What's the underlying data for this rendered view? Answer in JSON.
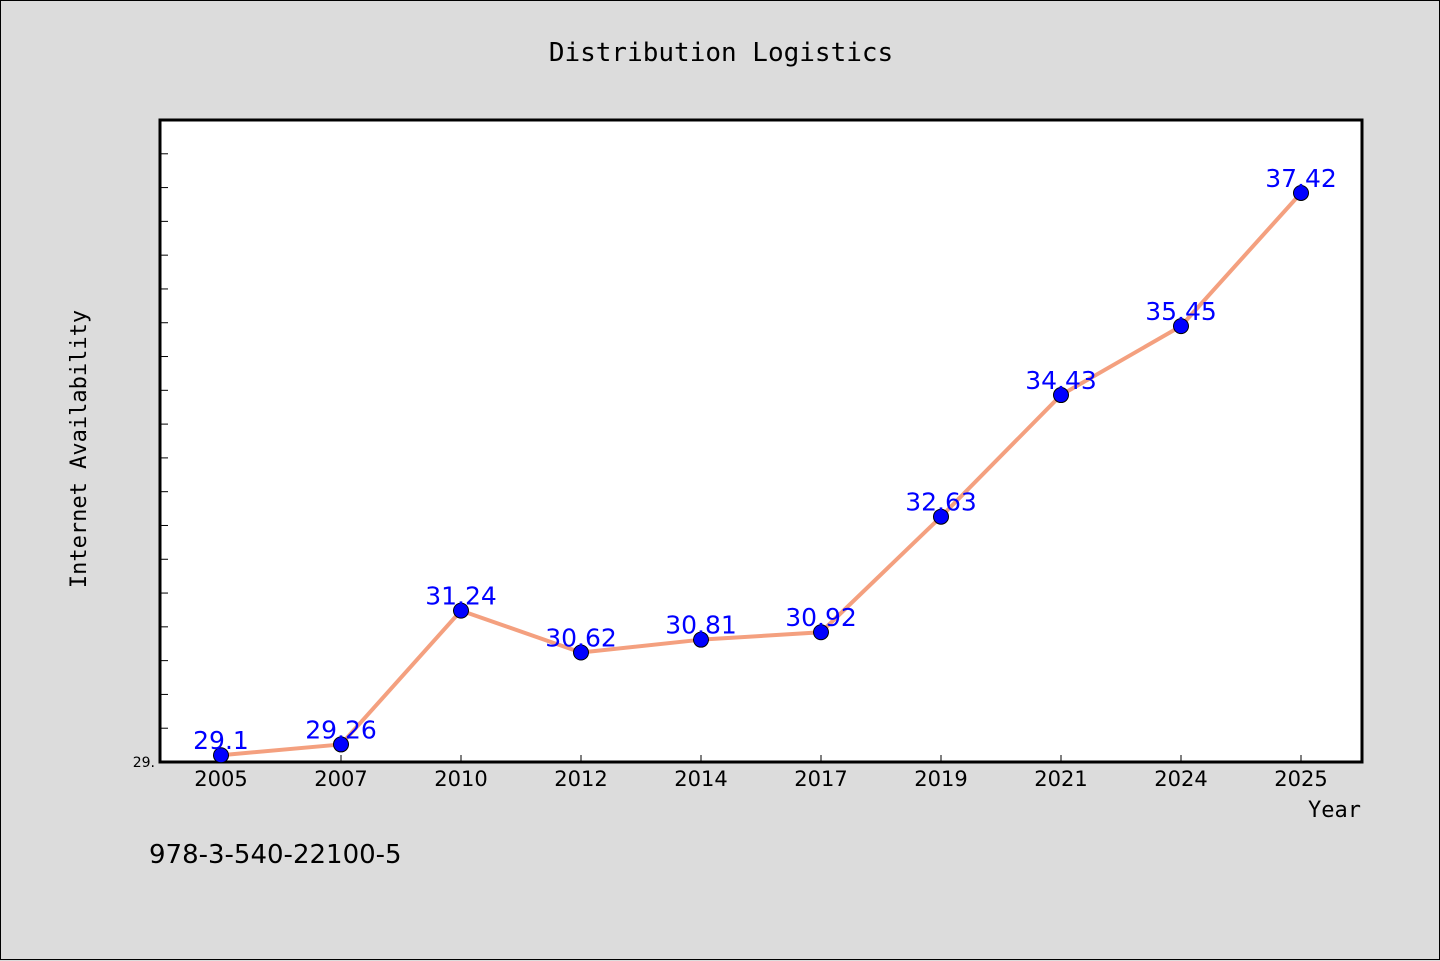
{
  "chart_data": {
    "type": "line",
    "title": "Distribution Logistics",
    "xlabel": "Year",
    "ylabel": "Internet Availability",
    "categories": [
      "2005",
      "2007",
      "2010",
      "2012",
      "2014",
      "2017",
      "2019",
      "2021",
      "2024",
      "2025"
    ],
    "series": [
      {
        "values": [
          29.1,
          29.26,
          31.24,
          30.62,
          30.81,
          30.92,
          32.63,
          34.43,
          35.45,
          37.42
        ],
        "labels": [
          "29.1",
          "29.26",
          "31.24",
          "30.62",
          "30.81",
          "30.92",
          "32.63",
          "34.43",
          "35.45",
          "37.42"
        ],
        "line_color": "#f4a07f",
        "marker_color": "#0000ff"
      }
    ],
    "ylim": [
      29.0,
      38.5
    ],
    "ytick_labels": [
      "29."
    ],
    "grid": false
  },
  "footer_text": "978-3-540-22100-5",
  "colors": {
    "background": "#dcdcdc",
    "plot_background": "#ffffff",
    "line": "#f4a07f",
    "marker": "#0000ff",
    "data_label": "#0000ff"
  }
}
